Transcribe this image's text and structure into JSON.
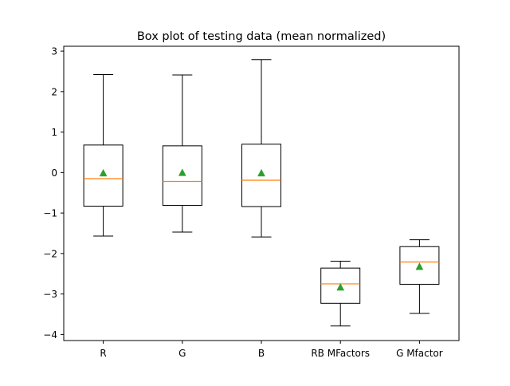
{
  "chart_data": {
    "type": "box",
    "title": "Box plot of testing data (mean normalized)",
    "xlabel": "",
    "ylabel": "",
    "categories": [
      "R",
      "G",
      "B",
      "RB MFactors",
      "G Mfactor"
    ],
    "ylim": [
      -4.15,
      3.12
    ],
    "yticks": [
      -4,
      -3,
      -2,
      -1,
      0,
      1,
      2,
      3
    ],
    "grid": false,
    "legend": "none",
    "boxes": [
      {
        "label": "R",
        "whisker_low": -1.57,
        "q1": -0.83,
        "median": -0.15,
        "q3": 0.68,
        "whisker_high": 2.42,
        "mean": -0.01
      },
      {
        "label": "G",
        "whisker_low": -1.47,
        "q1": -0.81,
        "median": -0.22,
        "q3": 0.66,
        "whisker_high": 2.41,
        "mean": 0.0
      },
      {
        "label": "B",
        "whisker_low": -1.59,
        "q1": -0.84,
        "median": -0.19,
        "q3": 0.7,
        "whisker_high": 2.79,
        "mean": -0.01
      },
      {
        "label": "RB MFactors",
        "whisker_low": -3.79,
        "q1": -3.23,
        "median": -2.75,
        "q3": -2.36,
        "whisker_high": -2.19,
        "mean": -2.83
      },
      {
        "label": "G Mfactor",
        "whisker_low": -3.48,
        "q1": -2.76,
        "median": -2.21,
        "q3": -1.83,
        "whisker_high": -1.66,
        "mean": -2.32
      }
    ],
    "colors": {
      "box": "#000000",
      "median": "#ff7f0e",
      "mean": "#2ca02c"
    }
  }
}
